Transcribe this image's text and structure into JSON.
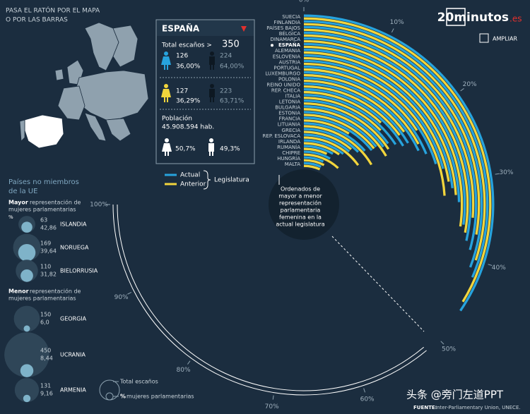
{
  "header": {
    "instruction": [
      "PASA EL RATÓN POR EL MAPA",
      "O POR LAS BARRAS"
    ],
    "logo": "20minutos",
    "logo_suffix": ".es",
    "zoom": "AMPLIAR"
  },
  "panel": {
    "country": "ESPAÑA",
    "seats_label": "Total escaños >",
    "seats": "350",
    "current": {
      "women": "126",
      "women_pct": "36,00%",
      "men": "224",
      "men_pct": "64,00%"
    },
    "previous": {
      "women": "127",
      "women_pct": "36,29%",
      "men": "223",
      "men_pct": "63,71%"
    },
    "population_label": "Población",
    "population": "45.908.594 hab.",
    "female_pct": "50,7%",
    "male_pct": "49,3%"
  },
  "non_eu": {
    "title": [
      "Países no miembros",
      "de la UE"
    ],
    "highest_title": {
      "bold": "Mayor",
      "rest": "representación de",
      "line2": "mujeres parlamentarias"
    },
    "pct_header": "%",
    "highest": [
      {
        "name": "ISLANDIA",
        "seats": 63,
        "pct": {
          "value": 42.86,
          "label": "42,86"
        }
      },
      {
        "name": "NORUEGA",
        "seats": 169,
        "pct": {
          "value": 39.64,
          "label": "39,64"
        }
      },
      {
        "name": "BIELORRUSIA",
        "seats": 110,
        "pct": {
          "value": 31.82,
          "label": "31,82"
        }
      }
    ],
    "lowest_title": {
      "bold": "Menor",
      "rest": "representación de",
      "line2": "mujeres parlamentarias"
    },
    "lowest": [
      {
        "name": "GEORGIA",
        "seats": 150,
        "pct": {
          "value": 6.0,
          "label": "6,0"
        }
      },
      {
        "name": "UCRANIA",
        "seats": 450,
        "pct": {
          "value": 8.44,
          "label": "8,44"
        }
      },
      {
        "name": "ARMENIA",
        "seats": 131,
        "pct": {
          "value": 9.16,
          "label": "9,16"
        }
      }
    ],
    "key": {
      "seats": "Total escaños",
      "pct_symbol": "%",
      "pct": "mujeres parlamentarias"
    }
  },
  "chart_data": {
    "type": "radial_bar",
    "description": [
      "Ordenados de",
      "mayor a menor",
      "representación",
      "parlamentaria",
      "femenina en la",
      "actual legislatura"
    ],
    "legend_title": "Legislatura",
    "categories": [
      "SUECIA",
      "FINLANDIA",
      "PAÍSES BAJOS",
      "BÉLGICA",
      "DINAMARCA",
      "ESPAÑA",
      "ALEMANIA",
      "ESLOVENIA",
      "AUSTRIA",
      "PORTUGAL",
      "LUXEMBURGO",
      "POLONIA",
      "REINO UNIDO",
      "REP. CHECA",
      "ITALIA",
      "LETONIA",
      "BULGARIA",
      "ESTONIA",
      "FRANCIA",
      "LITUANIA",
      "GRECIA",
      "REP. ESLOVACA",
      "IRLANDA",
      "RUMANÍA",
      "CHIPRE",
      "HUNGRÍA",
      "MALTA"
    ],
    "series": [
      {
        "name": "Actual",
        "color": "#27a3dd",
        "values": [
          46,
          42,
          41,
          39,
          38,
          36,
          33,
          31,
          28,
          27,
          25,
          24,
          22,
          22,
          21,
          20,
          20,
          19,
          19,
          18,
          17,
          15,
          14,
          11,
          11,
          9,
          9
        ]
      },
      {
        "name": "Anterior",
        "color": "#f2d53c",
        "values": [
          45,
          40,
          37,
          35,
          37,
          36.29,
          32,
          30,
          32,
          21,
          23,
          20,
          20,
          16,
          17,
          21,
          22,
          19,
          12,
          22,
          15,
          20,
          13,
          9,
          16,
          10,
          9
        ]
      }
    ],
    "alim": [
      0,
      100
    ],
    "aticks": [
      {
        "value": 0,
        "label": "0%"
      },
      {
        "value": 10,
        "label": "10%"
      },
      {
        "value": 20,
        "label": "20%"
      },
      {
        "value": 30,
        "label": "30%"
      },
      {
        "value": 40,
        "label": "40%"
      },
      {
        "value": 50,
        "label": "50%"
      },
      {
        "value": 60,
        "label": "60%"
      },
      {
        "value": 70,
        "label": "70%"
      },
      {
        "value": 80,
        "label": "80%"
      },
      {
        "value": 90,
        "label": "90%"
      },
      {
        "value": 100,
        "label": "100%"
      }
    ]
  },
  "footer": {
    "source_label": "FUENTE:",
    "source": "Inter-Parliamentary Union, UNECE.",
    "watermark": "头条 @旁门左道PPT"
  }
}
